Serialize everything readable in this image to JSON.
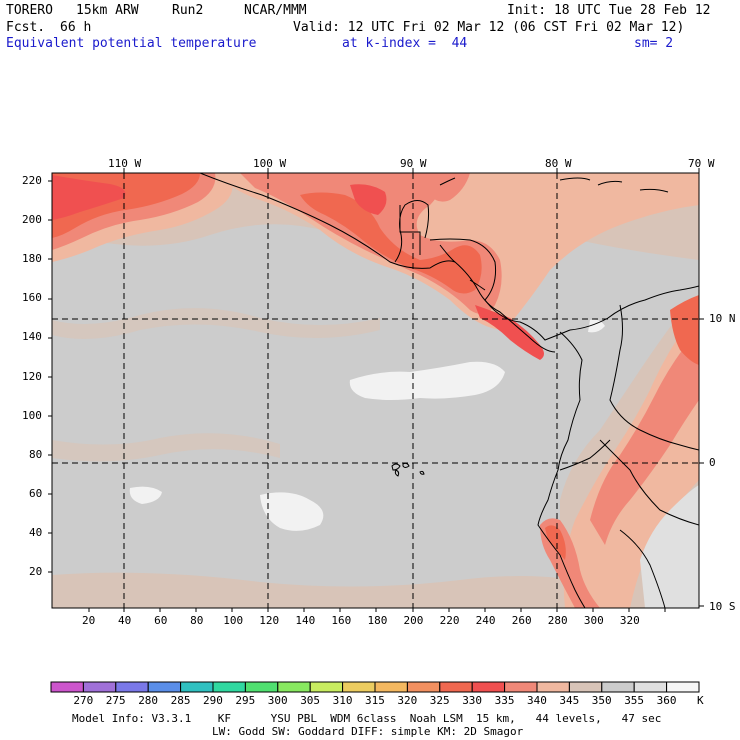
{
  "header": {
    "model": "TORERO",
    "resolution": "15km ARW",
    "run": "Run2",
    "org": "NCAR/MMM",
    "init": "Init: 18 UTC Tue 28 Feb 12",
    "fcst_label": "Fcst.",
    "fcst_value": "66 h",
    "valid": "Valid: 12 UTC Fri 02 Mar 12 (06 CST Fri 02 Mar 12)",
    "field": "Equivalent potential temperature",
    "level": "at k-index =  44",
    "smoothing": "sm= 2"
  },
  "map": {
    "lon_labels": [
      "110 W",
      "100 W",
      "90 W",
      "80 W",
      "70 W"
    ],
    "lat_labels_right": [
      "10 N",
      "0",
      "10 S"
    ],
    "y_ticks": [
      "20",
      "40",
      "60",
      "80",
      "100",
      "120",
      "140",
      "160",
      "180",
      "200",
      "220"
    ],
    "x_ticks": [
      "20",
      "40",
      "60",
      "80",
      "100",
      "120",
      "140",
      "160",
      "180",
      "200",
      "220",
      "240",
      "260",
      "280",
      "300",
      "320"
    ]
  },
  "colorbar": {
    "unit": "K",
    "labels": [
      "270",
      "275",
      "280",
      "285",
      "290",
      "295",
      "300",
      "305",
      "310",
      "315",
      "320",
      "325",
      "330",
      "335",
      "340",
      "345",
      "350",
      "355",
      "360"
    ],
    "colors": [
      "#cc55cc",
      "#a070d8",
      "#7a78e8",
      "#5a8ee8",
      "#30c0c0",
      "#30d8a0",
      "#50e070",
      "#88e860",
      "#c8ec60",
      "#eccc60",
      "#f4b860",
      "#f29060",
      "#f06850",
      "#f05050",
      "#f08878",
      "#f0b8a0",
      "#d8c4b8",
      "#cccccc",
      "#e0e0e0",
      "#f6f6f6"
    ]
  },
  "footer": {
    "line1": "Model Info: V3.3.1    KF      YSU PBL  WDM 6class  Noah LSM  15 km,   44 levels,   47 sec",
    "line2": "LW: Godd SW: Goddard DIFF: simple KM: 2D Smagor"
  }
}
